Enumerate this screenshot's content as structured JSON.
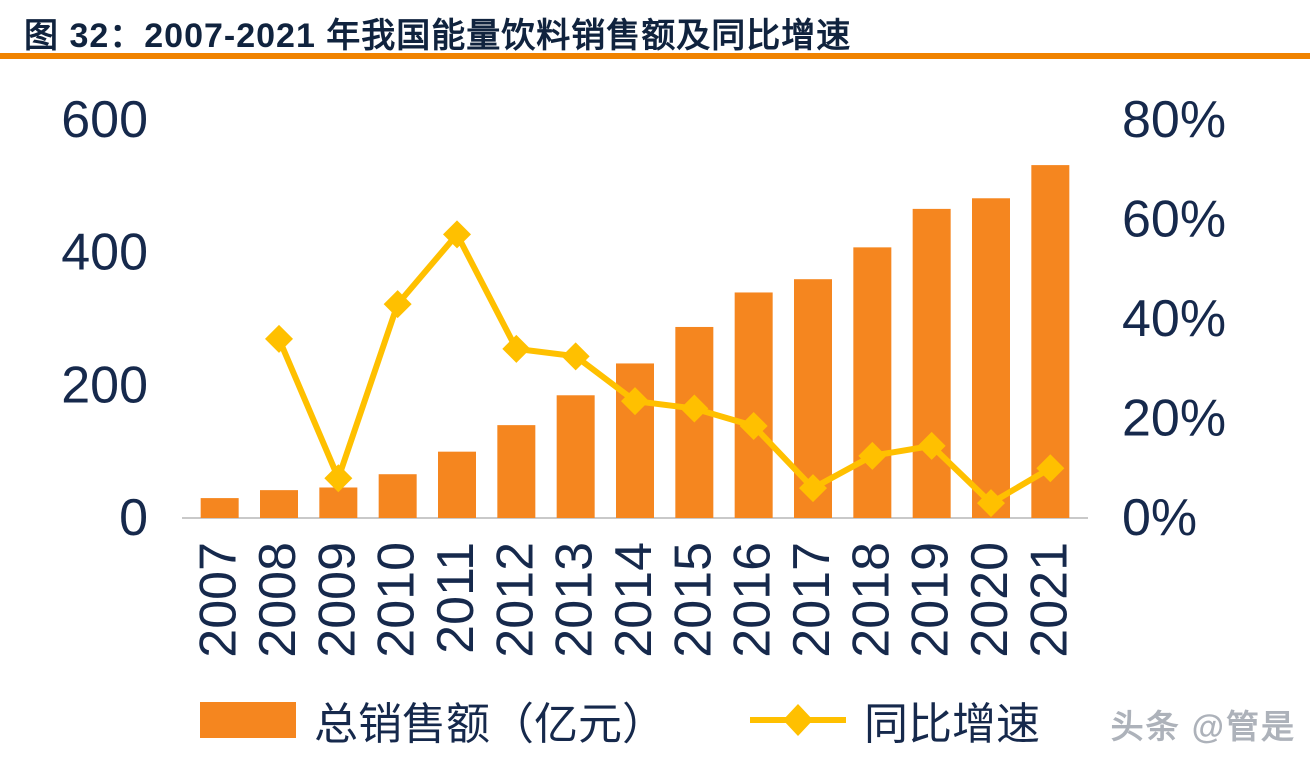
{
  "header": {
    "title": "图 32：2007-2021 年我国能量饮料销售额及同比增速"
  },
  "legend": {
    "bars_label": "总销售额（亿元）",
    "line_label": "同比增速"
  },
  "watermark": "头条 @管是",
  "colors": {
    "bar": "#F5861F",
    "line": "#FFC000",
    "divider": "#F08300",
    "title_text": "#10233E",
    "axis_text": "#16294C",
    "axis_line": "#C9C9C9",
    "watermark": "#ADB2BA"
  },
  "chart_data": {
    "type": "bar",
    "subtype": "bar+line combo",
    "title": "2007-2021 年我国能量饮料销售额及同比增速",
    "categories": [
      "2007",
      "2008",
      "2009",
      "2010",
      "2011",
      "2012",
      "2013",
      "2014",
      "2015",
      "2016",
      "2017",
      "2018",
      "2019",
      "2020",
      "2021"
    ],
    "series": [
      {
        "name": "总销售额（亿元）",
        "type": "bar",
        "axis": "left",
        "values": [
          30,
          42,
          46,
          66,
          100,
          140,
          185,
          233,
          288,
          340,
          360,
          408,
          466,
          482,
          532
        ]
      },
      {
        "name": "同比增速",
        "type": "line",
        "axis": "right",
        "unit": "%",
        "values": [
          null,
          36,
          8,
          43,
          57,
          34,
          32.5,
          23.5,
          22,
          18.5,
          6,
          12.5,
          14.5,
          3,
          10
        ]
      }
    ],
    "left_axis": {
      "max": 600,
      "ticks": [
        0,
        200,
        400,
        600
      ],
      "tick_labels": [
        "0",
        "200",
        "400",
        "600"
      ]
    },
    "right_axis": {
      "max": 80,
      "ticks": [
        0,
        20,
        40,
        60,
        80
      ],
      "tick_labels": [
        "0%",
        "20%",
        "40%",
        "60%",
        "80%"
      ]
    },
    "grid": false,
    "legend_position": "bottom",
    "x_label_rotation": -90
  }
}
